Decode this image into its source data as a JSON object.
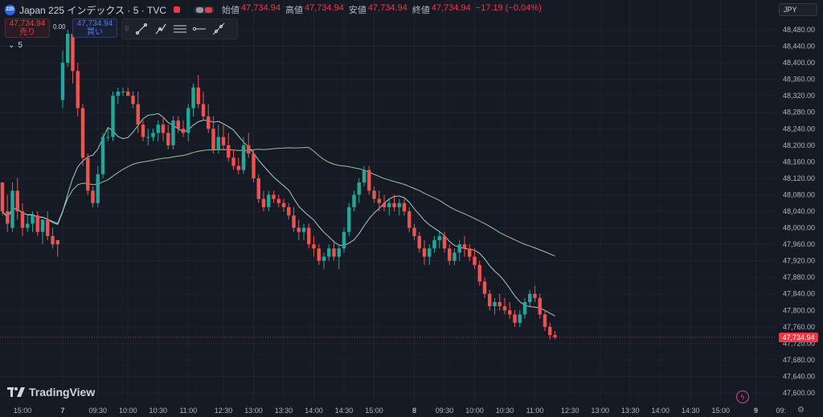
{
  "header": {
    "symbol_badge": "225",
    "symbol_title": "Japan 225 インデックス · 5 · TVC",
    "ohlc": [
      {
        "label": "始値",
        "value": "47,734.94"
      },
      {
        "label": "高値",
        "value": "47,734.94"
      },
      {
        "label": "安値",
        "value": "47,734.94"
      },
      {
        "label": "終値",
        "value": "47,734.94"
      }
    ],
    "change": "−17.19 (−0.04%)"
  },
  "trade": {
    "sell_price": "47,734.94",
    "sell_label": "売り",
    "spread": "0.00",
    "buy_price": "47,734.94",
    "buy_label": "買い"
  },
  "toolbar": {
    "grip_icon": "drag-handle-icon",
    "tools": [
      "trend-line-icon",
      "multi-point-line-icon",
      "parallel-lines-icon",
      "horizontal-ray-icon",
      "extended-line-icon"
    ]
  },
  "indicator": {
    "chevron": "⌄",
    "count": "5"
  },
  "currency": "JPY",
  "last_price_label": "47,734.94",
  "brand": {
    "name": "TradingView"
  },
  "colors": {
    "up": "#26a69a",
    "down": "#ef5350",
    "ma_fast": "#b2dfdb",
    "ma_slow": "#a5d6a7",
    "background": "#161a25",
    "grid": "#1f2330"
  },
  "chart_data": {
    "type": "candlestick",
    "ylim": [
      47580,
      48500
    ],
    "y_ticks": [
      "48,480.00",
      "48,440.00",
      "48,400.00",
      "48,360.00",
      "48,320.00",
      "48,280.00",
      "48,240.00",
      "48,200.00",
      "48,160.00",
      "48,120.00",
      "48,080.00",
      "48,040.00",
      "48,000.00",
      "47,960.00",
      "47,920.00",
      "47,880.00",
      "47,840.00",
      "47,800.00",
      "47,760.00",
      "47,720.00",
      "47,680.00",
      "47,640.00",
      "47,600.00"
    ],
    "x_ticks": [
      {
        "label": "15:00",
        "i": 4
      },
      {
        "label": "7",
        "i": 12
      },
      {
        "label": "09:30",
        "i": 19
      },
      {
        "label": "10:00",
        "i": 25
      },
      {
        "label": "10:30",
        "i": 31
      },
      {
        "label": "11:00",
        "i": 37
      },
      {
        "label": "12:30",
        "i": 44
      },
      {
        "label": "13:00",
        "i": 50
      },
      {
        "label": "13:30",
        "i": 56
      },
      {
        "label": "14:00",
        "i": 62
      },
      {
        "label": "14:30",
        "i": 68
      },
      {
        "label": "15:00",
        "i": 74
      },
      {
        "label": "8",
        "i": 82
      },
      {
        "label": "09:30",
        "i": 88
      },
      {
        "label": "10:00",
        "i": 94
      },
      {
        "label": "10:30",
        "i": 100
      },
      {
        "label": "11:00",
        "i": 106
      },
      {
        "label": "12:30",
        "i": 113
      },
      {
        "label": "13:00",
        "i": 119
      },
      {
        "label": "13:30",
        "i": 125
      },
      {
        "label": "14:00",
        "i": 131
      },
      {
        "label": "14:30",
        "i": 137
      },
      {
        "label": "15:00",
        "i": 143
      },
      {
        "label": "9",
        "i": 150
      },
      {
        "label": "09:",
        "i": 155
      }
    ],
    "candles": [
      [
        48110,
        48110,
        48030,
        48040
      ],
      [
        48040,
        48080,
        47990,
        48010
      ],
      [
        48000,
        48110,
        47990,
        48090
      ],
      [
        48090,
        48120,
        48020,
        48040
      ],
      [
        48040,
        48060,
        47980,
        48000
      ],
      [
        48000,
        48030,
        47990,
        48010
      ],
      [
        48010,
        48040,
        47990,
        48030
      ],
      [
        48030,
        48040,
        47980,
        47990
      ],
      [
        47990,
        48020,
        47960,
        48020
      ],
      [
        48020,
        48040,
        47970,
        47980
      ],
      [
        47980,
        48000,
        47950,
        47960
      ],
      [
        47970,
        47970,
        47930,
        47960
      ],
      [
        48310,
        48430,
        48290,
        48400
      ],
      [
        48400,
        48480,
        48390,
        48470
      ],
      [
        48470,
        48480,
        48350,
        48380
      ],
      [
        48380,
        48400,
        48270,
        48290
      ],
      [
        48290,
        48300,
        48150,
        48170
      ],
      [
        48170,
        48180,
        48080,
        48090
      ],
      [
        48090,
        48100,
        48050,
        48060
      ],
      [
        48060,
        48150,
        48050,
        48130
      ],
      [
        48130,
        48230,
        48120,
        48220
      ],
      [
        48220,
        48240,
        48210,
        48220
      ],
      [
        48220,
        48330,
        48210,
        48320
      ],
      [
        48320,
        48340,
        48300,
        48330
      ],
      [
        48330,
        48340,
        48320,
        48330
      ],
      [
        48330,
        48340,
        48320,
        48320
      ],
      [
        48320,
        48330,
        48290,
        48300
      ],
      [
        48300,
        48330,
        48230,
        48250
      ],
      [
        48250,
        48260,
        48210,
        48220
      ],
      [
        48220,
        48240,
        48200,
        48220
      ],
      [
        48220,
        48240,
        48210,
        48230
      ],
      [
        48230,
        48260,
        48210,
        48250
      ],
      [
        48250,
        48270,
        48210,
        48230
      ],
      [
        48230,
        48250,
        48190,
        48200
      ],
      [
        48200,
        48270,
        48190,
        48260
      ],
      [
        48260,
        48270,
        48230,
        48240
      ],
      [
        48240,
        48260,
        48220,
        48230
      ],
      [
        48230,
        48300,
        48210,
        48290
      ],
      [
        48290,
        48350,
        48270,
        48340
      ],
      [
        48340,
        48370,
        48290,
        48300
      ],
      [
        48300,
        48330,
        48260,
        48270
      ],
      [
        48270,
        48300,
        48230,
        48240
      ],
      [
        48240,
        48270,
        48180,
        48190
      ],
      [
        48190,
        48250,
        48180,
        48220
      ],
      [
        48220,
        48250,
        48190,
        48200
      ],
      [
        48200,
        48230,
        48160,
        48170
      ],
      [
        48170,
        48190,
        48140,
        48150
      ],
      [
        48150,
        48170,
        48130,
        48140
      ],
      [
        48140,
        48220,
        48130,
        48200
      ],
      [
        48200,
        48230,
        48170,
        48180
      ],
      [
        48180,
        48190,
        48110,
        48120
      ],
      [
        48120,
        48130,
        48060,
        48070
      ],
      [
        48070,
        48090,
        48040,
        48050
      ],
      [
        48050,
        48090,
        48040,
        48080
      ],
      [
        48080,
        48090,
        48060,
        48070
      ],
      [
        48070,
        48080,
        48050,
        48060
      ],
      [
        48060,
        48070,
        48040,
        48050
      ],
      [
        48050,
        48060,
        48020,
        48030
      ],
      [
        48030,
        48050,
        47990,
        48000
      ],
      [
        48000,
        48020,
        47970,
        47990
      ],
      [
        47990,
        48010,
        47970,
        48000
      ],
      [
        48000,
        48010,
        47950,
        47960
      ],
      [
        47960,
        47980,
        47930,
        47950
      ],
      [
        47950,
        47960,
        47910,
        47920
      ],
      [
        47920,
        47940,
        47900,
        47930
      ],
      [
        47930,
        47960,
        47920,
        47950
      ],
      [
        47950,
        47970,
        47920,
        47930
      ],
      [
        47930,
        47960,
        47900,
        47950
      ],
      [
        47950,
        48000,
        47940,
        47990
      ],
      [
        47990,
        48060,
        47980,
        48050
      ],
      [
        48050,
        48090,
        48040,
        48080
      ],
      [
        48080,
        48120,
        48060,
        48110
      ],
      [
        48110,
        48150,
        48100,
        48140
      ],
      [
        48140,
        48150,
        48080,
        48090
      ],
      [
        48090,
        48100,
        48060,
        48070
      ],
      [
        48070,
        48090,
        48040,
        48060
      ],
      [
        48060,
        48080,
        48040,
        48050
      ],
      [
        48050,
        48070,
        48030,
        48060
      ],
      [
        48060,
        48080,
        48040,
        48050
      ],
      [
        48050,
        48070,
        48030,
        48060
      ],
      [
        48060,
        48070,
        48030,
        48040
      ],
      [
        48040,
        48050,
        47990,
        48000
      ],
      [
        48000,
        48010,
        47970,
        47980
      ],
      [
        47980,
        47990,
        47940,
        47950
      ],
      [
        47950,
        47970,
        47910,
        47930
      ],
      [
        47930,
        47960,
        47910,
        47950
      ],
      [
        47950,
        47980,
        47940,
        47970
      ],
      [
        47970,
        47990,
        47950,
        47980
      ],
      [
        47980,
        47990,
        47940,
        47950
      ],
      [
        47950,
        47960,
        47910,
        47920
      ],
      [
        47920,
        47950,
        47910,
        47940
      ],
      [
        47940,
        47970,
        47920,
        47960
      ],
      [
        47960,
        47980,
        47930,
        47950
      ],
      [
        47950,
        47960,
        47920,
        47930
      ],
      [
        47930,
        47950,
        47900,
        47910
      ],
      [
        47910,
        47920,
        47860,
        47870
      ],
      [
        47870,
        47880,
        47830,
        47840
      ],
      [
        47840,
        47850,
        47800,
        47810
      ],
      [
        47810,
        47830,
        47790,
        47820
      ],
      [
        47820,
        47840,
        47800,
        47810
      ],
      [
        47810,
        47830,
        47790,
        47800
      ],
      [
        47800,
        47820,
        47780,
        47790
      ],
      [
        47790,
        47800,
        47760,
        47770
      ],
      [
        47770,
        47800,
        47760,
        47790
      ],
      [
        47790,
        47830,
        47780,
        47820
      ],
      [
        47820,
        47850,
        47810,
        47840
      ],
      [
        47840,
        47860,
        47820,
        47830
      ],
      [
        47830,
        47840,
        47780,
        47790
      ],
      [
        47790,
        47800,
        47750,
        47760
      ],
      [
        47760,
        47770,
        47730,
        47740
      ],
      [
        47740,
        47750,
        47730,
        47735
      ]
    ],
    "ma_fast": "10-period",
    "ma_slow": "50-period"
  }
}
